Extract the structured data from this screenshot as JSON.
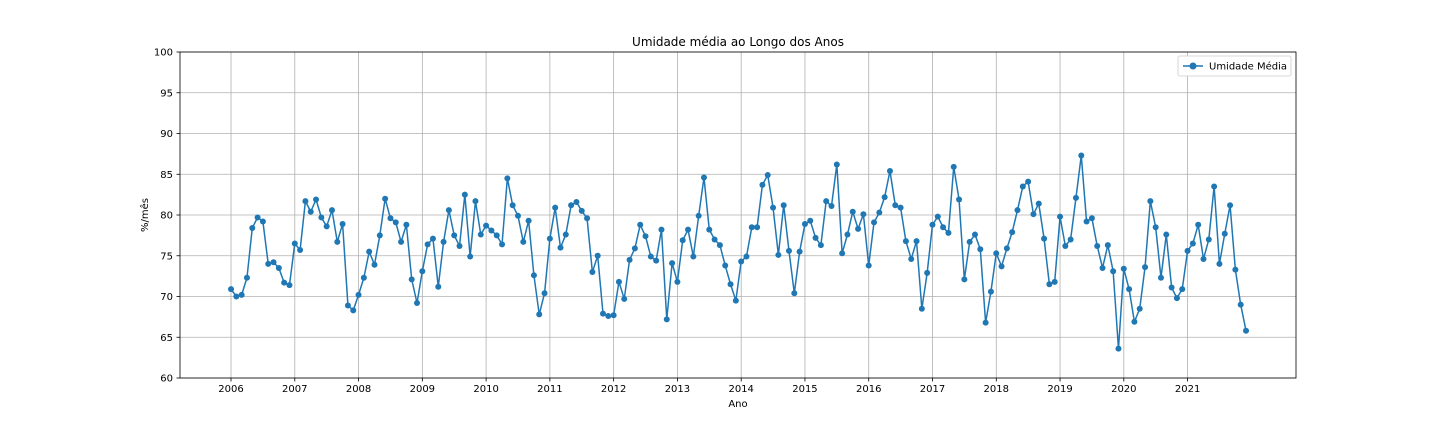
{
  "chart_data": {
    "type": "line",
    "title": "Umidade média ao Longo dos Anos",
    "xlabel": "Ano",
    "ylabel": "%/mês",
    "xlim": [
      2005.2,
      2022.7
    ],
    "ylim": [
      60,
      100
    ],
    "x_ticks": [
      2006,
      2007,
      2008,
      2009,
      2010,
      2011,
      2012,
      2013,
      2014,
      2015,
      2016,
      2017,
      2018,
      2019,
      2020,
      2021
    ],
    "x_tick_labels": [
      "2006",
      "2007",
      "2008",
      "2009",
      "2010",
      "2011",
      "2012",
      "2013",
      "2014",
      "2015",
      "2016",
      "2017",
      "2018",
      "2019",
      "2020",
      "2021"
    ],
    "y_ticks": [
      60,
      65,
      70,
      75,
      80,
      85,
      90,
      95,
      100
    ],
    "y_tick_labels": [
      "60",
      "65",
      "70",
      "75",
      "80",
      "85",
      "90",
      "95",
      "100"
    ],
    "grid": true,
    "legend_position": "top-right",
    "x_start": 2006,
    "x_step": 0.08333,
    "series": [
      {
        "name": "Umidade Média",
        "color": "#1f77b4",
        "marker": "circle",
        "values": [
          70.9,
          70.0,
          70.2,
          72.3,
          78.4,
          79.7,
          79.2,
          74.0,
          74.2,
          73.5,
          71.7,
          71.4,
          76.5,
          75.7,
          81.7,
          80.4,
          81.9,
          79.7,
          78.6,
          80.6,
          76.7,
          78.9,
          68.9,
          68.3,
          70.2,
          72.3,
          75.5,
          73.9,
          77.5,
          82.0,
          79.6,
          79.1,
          76.7,
          78.8,
          72.1,
          69.2,
          73.1,
          76.4,
          77.1,
          71.2,
          76.7,
          80.6,
          77.5,
          76.2,
          82.5,
          74.9,
          81.7,
          77.6,
          78.7,
          78.1,
          77.5,
          76.4,
          84.5,
          81.2,
          79.9,
          76.7,
          79.3,
          72.6,
          67.8,
          70.4,
          77.1,
          80.9,
          76.0,
          77.6,
          81.2,
          81.6,
          80.5,
          79.6,
          73.0,
          75.0,
          67.9,
          67.6,
          67.7,
          71.8,
          69.7,
          74.5,
          75.9,
          78.8,
          77.4,
          74.9,
          74.4,
          78.2,
          67.2,
          74.1,
          71.8,
          76.9,
          78.2,
          74.9,
          79.9,
          84.6,
          78.2,
          77.0,
          76.3,
          73.8,
          71.5,
          69.5,
          74.3,
          74.9,
          78.5,
          78.5,
          83.7,
          84.9,
          80.9,
          75.1,
          81.2,
          75.6,
          70.4,
          75.5,
          78.9,
          79.3,
          77.2,
          76.3,
          81.7,
          81.1,
          86.2,
          75.3,
          77.6,
          80.4,
          78.3,
          80.1,
          73.8,
          79.1,
          80.3,
          82.2,
          85.4,
          81.2,
          80.9,
          76.8,
          74.6,
          76.8,
          68.5,
          72.9,
          78.8,
          79.8,
          78.5,
          77.8,
          85.9,
          81.9,
          72.1,
          76.7,
          77.6,
          75.8,
          66.8,
          70.6,
          75.3,
          73.7,
          75.9,
          77.9,
          80.6,
          83.5,
          84.1,
          80.1,
          81.4,
          77.1,
          71.5,
          71.8,
          79.8,
          76.2,
          77.0,
          82.1,
          87.3,
          79.2,
          79.6,
          76.2,
          73.5,
          76.3,
          73.1,
          63.6,
          73.4,
          70.9,
          66.9,
          68.5,
          73.6,
          81.7,
          78.5,
          72.3,
          77.6,
          71.1,
          69.8,
          70.9,
          75.6,
          76.5,
          78.8,
          74.6,
          77.0,
          83.5,
          74.0,
          77.7,
          81.2,
          73.3,
          69.0,
          65.8
        ]
      }
    ]
  }
}
